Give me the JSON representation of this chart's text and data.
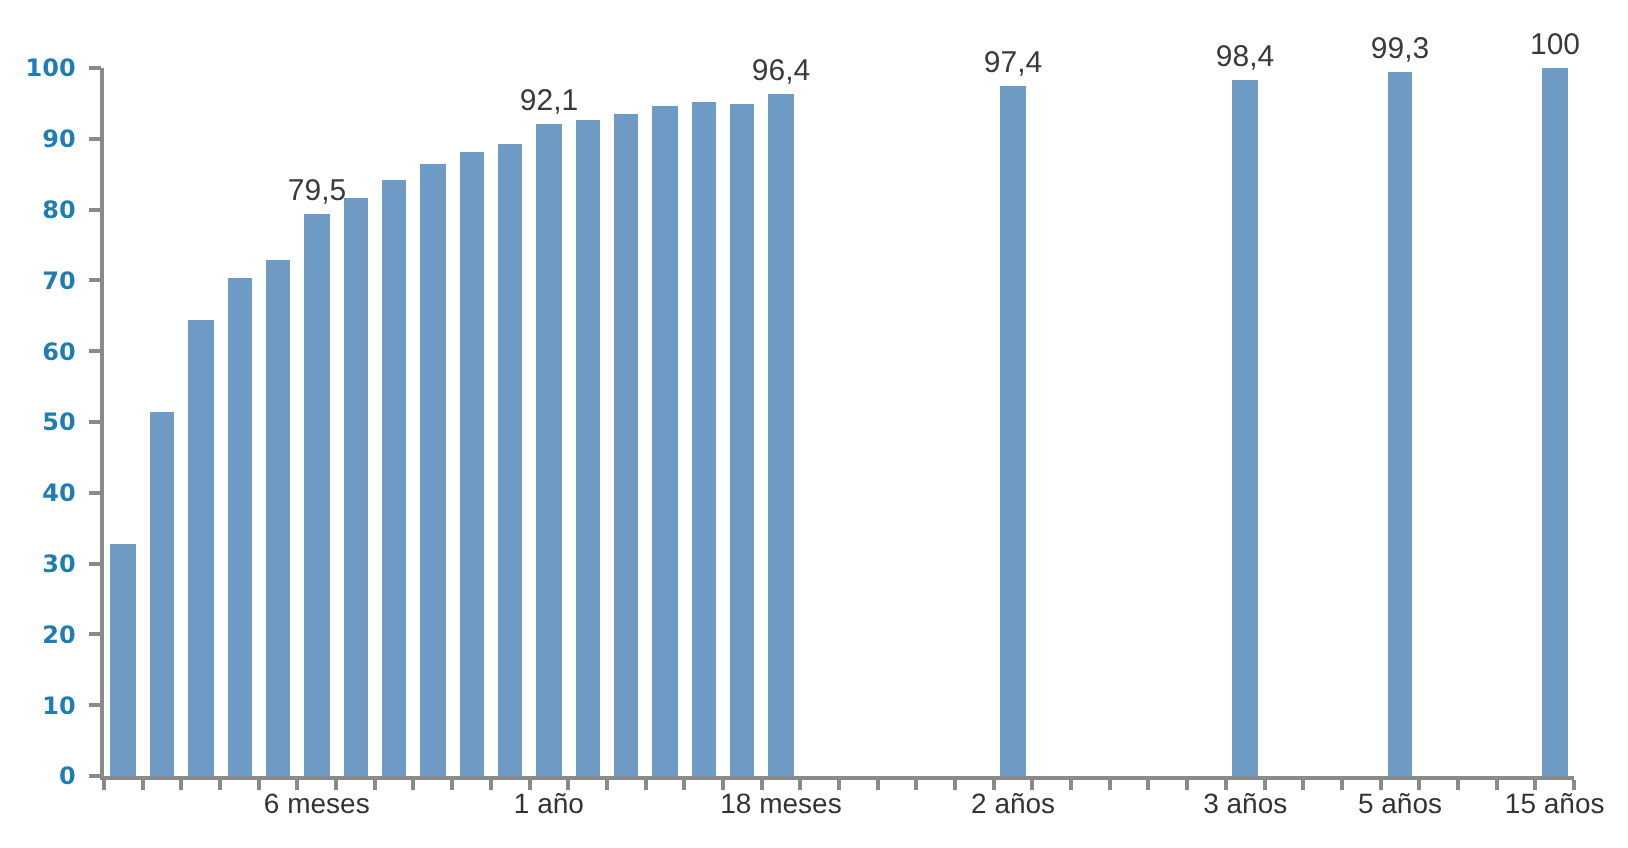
{
  "chart_data": {
    "type": "bar",
    "categories": [
      null,
      null,
      null,
      null,
      null,
      "6 meses",
      null,
      null,
      null,
      null,
      null,
      "1 año",
      null,
      null,
      null,
      null,
      null,
      "18 meses",
      null,
      null,
      null,
      null,
      null,
      "2 años",
      null,
      null,
      null,
      null,
      null,
      "3 años",
      null,
      null,
      null,
      "5 años",
      null,
      null,
      null,
      "15 años"
    ],
    "values": [
      32.7,
      51.3,
      64.5,
      70.2,
      73.0,
      79.5,
      81.6,
      84.1,
      86.5,
      88.1,
      89.3,
      92.1,
      92.7,
      93.6,
      94.5,
      95.2,
      94.8,
      96.4,
      null,
      null,
      null,
      null,
      null,
      97.4,
      null,
      null,
      null,
      null,
      null,
      98.4,
      null,
      null,
      null,
      99.3,
      null,
      null,
      null,
      100
    ],
    "value_labels": [
      null,
      null,
      null,
      null,
      null,
      "79,5",
      null,
      null,
      null,
      null,
      null,
      "92,1",
      null,
      null,
      null,
      null,
      null,
      "96,4",
      null,
      null,
      null,
      null,
      null,
      "97,4",
      null,
      null,
      null,
      null,
      null,
      "98,4",
      null,
      null,
      null,
      "99,3",
      null,
      null,
      null,
      "100"
    ],
    "color": "#6f9ac4",
    "ylim": [
      0,
      100
    ],
    "yticks": [
      0,
      10,
      20,
      30,
      40,
      50,
      60,
      70,
      80,
      90,
      100
    ]
  }
}
